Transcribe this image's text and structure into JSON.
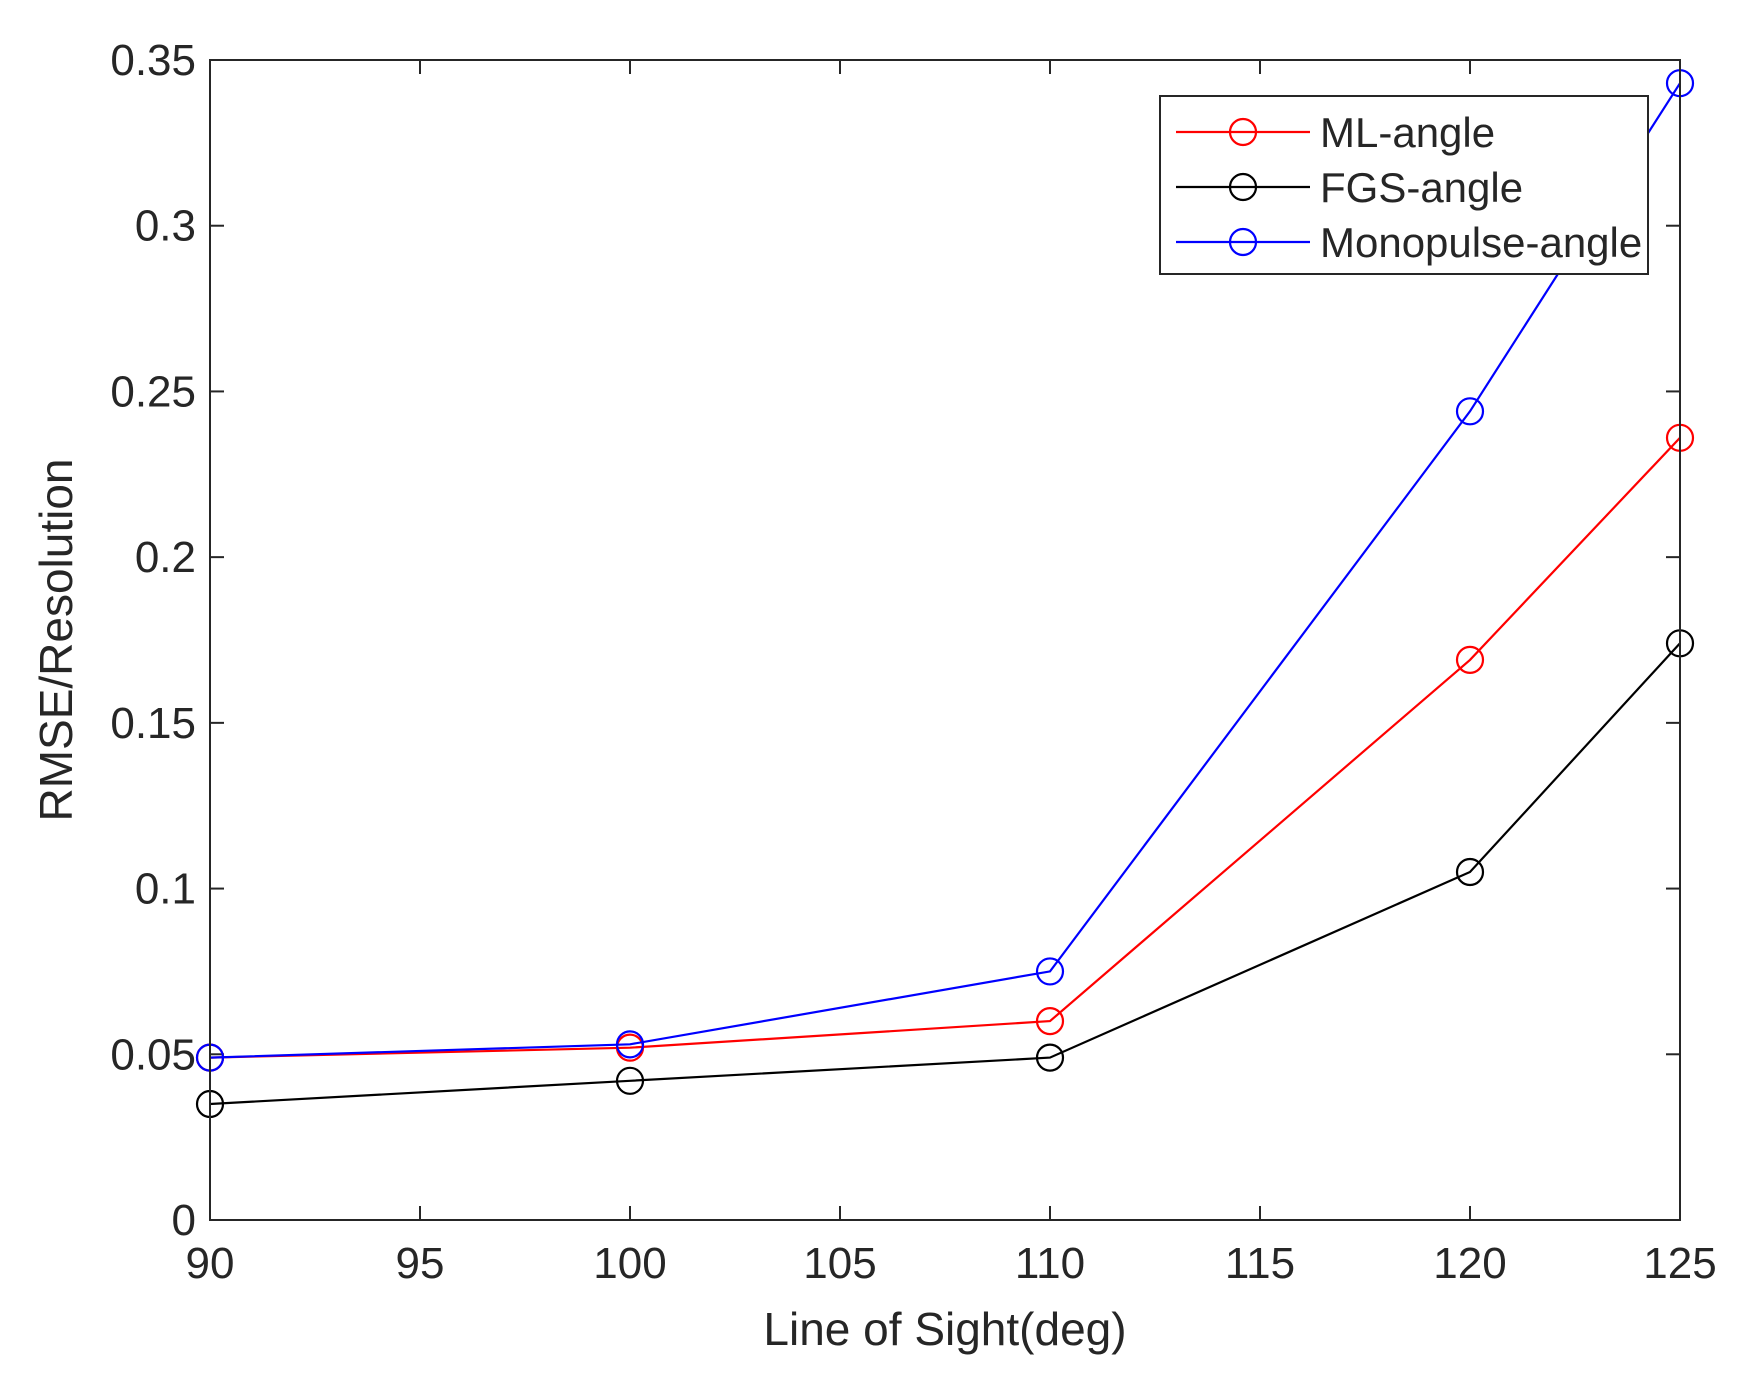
{
  "chart_data": {
    "type": "line",
    "title": "",
    "xlabel": "Line of Sight(deg)",
    "ylabel": "RMSE/Resolution",
    "xlim": [
      90,
      125
    ],
    "ylim": [
      0,
      0.35
    ],
    "xticks": [
      90,
      95,
      100,
      105,
      110,
      115,
      120,
      125
    ],
    "yticks": [
      0,
      0.05,
      0.1,
      0.15,
      0.2,
      0.25,
      0.3,
      0.35
    ],
    "xtick_labels": [
      "90",
      "95",
      "100",
      "105",
      "110",
      "115",
      "120",
      "125"
    ],
    "ytick_labels": [
      "0",
      "0.05",
      "0.1",
      "0.15",
      "0.2",
      "0.25",
      "0.3",
      "0.35"
    ],
    "grid": false,
    "legend_position": "top-right",
    "x": [
      90,
      100,
      110,
      120,
      125
    ],
    "series": [
      {
        "name": "ML-angle",
        "color": "#ff0000",
        "marker": "circle",
        "values": [
          0.049,
          0.052,
          0.06,
          0.169,
          0.236
        ]
      },
      {
        "name": "FGS-angle",
        "color": "#000000",
        "marker": "circle",
        "values": [
          0.035,
          0.042,
          0.049,
          0.105,
          0.174
        ]
      },
      {
        "name": "Monopulse-angle",
        "color": "#0000ff",
        "marker": "circle",
        "values": [
          0.049,
          0.053,
          0.075,
          0.244,
          0.343
        ]
      }
    ]
  }
}
